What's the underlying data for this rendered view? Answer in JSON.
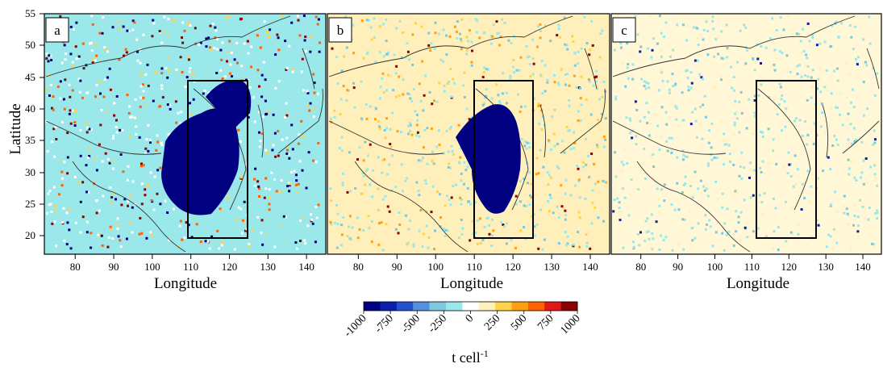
{
  "figure": {
    "ylabel": "Latitude",
    "xlabel": "Longitude",
    "lat_ticks": [
      "55",
      "50",
      "45",
      "40",
      "35",
      "30",
      "25",
      "20"
    ],
    "lon_ticks": [
      "80",
      "90",
      "100",
      "110",
      "120",
      "130",
      "140"
    ],
    "panels": [
      {
        "label": "a",
        "intensity": 1.0
      },
      {
        "label": "b",
        "intensity": 0.55
      },
      {
        "label": "c",
        "intensity": 0.2
      }
    ],
    "box_region": {
      "lon": [
        110,
        125
      ],
      "lat": [
        20,
        45
      ]
    },
    "extent": {
      "lon": [
        72,
        145
      ],
      "lat": [
        17,
        55
      ]
    }
  },
  "colorbar": {
    "unit_base": "t cell",
    "unit_exp": "-1",
    "ticks": [
      "-1000",
      "-750",
      "-500",
      "-250",
      "0",
      "250",
      "500",
      "750",
      "1000"
    ],
    "colors": [
      "#000080",
      "#0a20a8",
      "#2550d0",
      "#5590dd",
      "#7cc8dc",
      "#9ae8ea",
      "#ffffff",
      "#fff0bb",
      "#ffd24a",
      "#ffa010",
      "#ff6000",
      "#e01818",
      "#8b0000"
    ]
  }
}
